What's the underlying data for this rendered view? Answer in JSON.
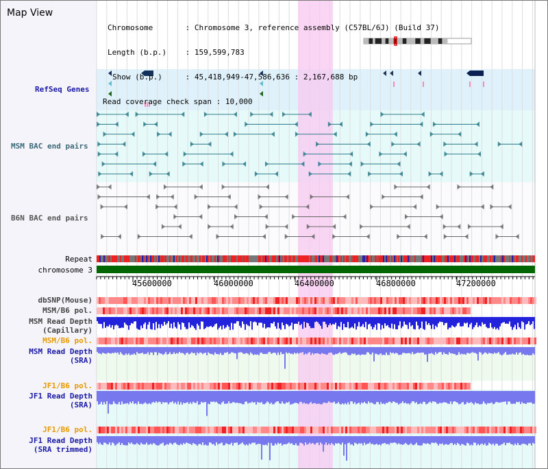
{
  "panel_title": "Map View",
  "info": {
    "chromosome_label": "Chromosome",
    "chromosome_value": "Chromosome 3, reference assembly (C57BL/6J) (Build 37)",
    "length_label": "Length (b.p.)",
    "length_value": "159,599,783",
    "show_label": "Show (b.p.)",
    "show_value": "45,418,949-47,586,636 : 2,167,688 bp",
    "coverage_label": "Read coverage check span",
    "coverage_value": "10,000"
  },
  "tracks": {
    "refseq": "RefSeq Genes",
    "msm_bac": "MSM BAC end pairs",
    "b6n_bac": "B6N BAC end pairs",
    "repeat": "Repeat",
    "chromosome": "chromosome 3",
    "dbsnp": "dbSNP(Mouse)",
    "msm_b6_pol_1": "MSM/B6 pol.",
    "msm_read_depth_cap_1": "MSM Read Depth",
    "msm_read_depth_cap_2": "(Capillary)",
    "msm_b6_pol_2": "MSM/B6 pol.",
    "msm_read_depth_sra_1": "MSM Read Depth",
    "msm_read_depth_sra_2": "(SRA)",
    "jf1_b6_pol_1": "JF1/B6 pol.",
    "jf1_read_depth_sra_1": "JF1 Read Depth",
    "jf1_read_depth_sra_2": "(SRA)",
    "jf1_b6_pol_2": "JF1/B6 pol.",
    "jf1_read_depth_trim_1": "JF1 Read Depth",
    "jf1_read_depth_trim_2": "(SRA trimmed)"
  },
  "axis_ticks": [
    "45600000",
    "46000000",
    "46400000",
    "46800000",
    "47200000"
  ],
  "colors": {
    "label_blue": "#1a1aa6",
    "label_gray": "#444444",
    "label_orange": "#e69a00",
    "highlight": "#f8c8f0",
    "depth_blue": "#2222dd",
    "sra_blue": "#7777ee",
    "chromosome_green": "#006600"
  }
}
